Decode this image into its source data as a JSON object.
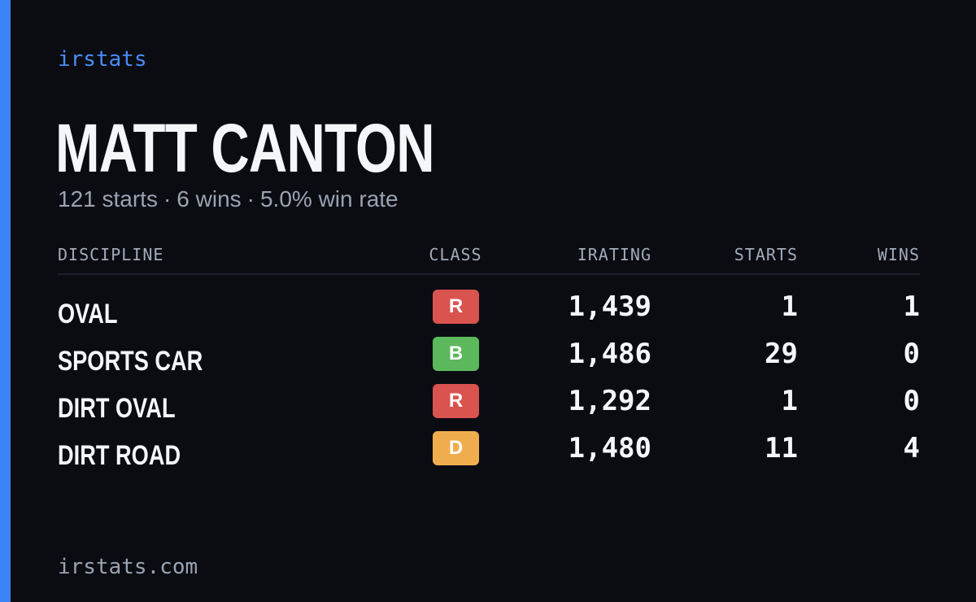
{
  "brand": "irstats",
  "driver": {
    "name": "MATT CANTON",
    "summary": {
      "starts": "121 starts",
      "wins": "6 wins",
      "win_rate": "5.0% win rate",
      "separator": "·"
    }
  },
  "table": {
    "headers": {
      "discipline": "DISCIPLINE",
      "class": "CLASS",
      "irating": "IRATING",
      "starts": "STARTS",
      "wins": "WINS"
    },
    "rows": [
      {
        "discipline": "OVAL",
        "class": "R",
        "class_color": "#d9534f",
        "irating": "1,439",
        "starts": "1",
        "wins": "1"
      },
      {
        "discipline": "SPORTS CAR",
        "class": "B",
        "class_color": "#5cb85c",
        "irating": "1,486",
        "starts": "29",
        "wins": "0"
      },
      {
        "discipline": "DIRT OVAL",
        "class": "R",
        "class_color": "#d9534f",
        "irating": "1,292",
        "starts": "1",
        "wins": "0"
      },
      {
        "discipline": "DIRT ROAD",
        "class": "D",
        "class_color": "#f0ad4e",
        "irating": "1,480",
        "starts": "11",
        "wins": "4"
      }
    ]
  },
  "footer": "irstats.com",
  "colors": {
    "accent": "#3b82f6",
    "background": "#0a0c12"
  }
}
